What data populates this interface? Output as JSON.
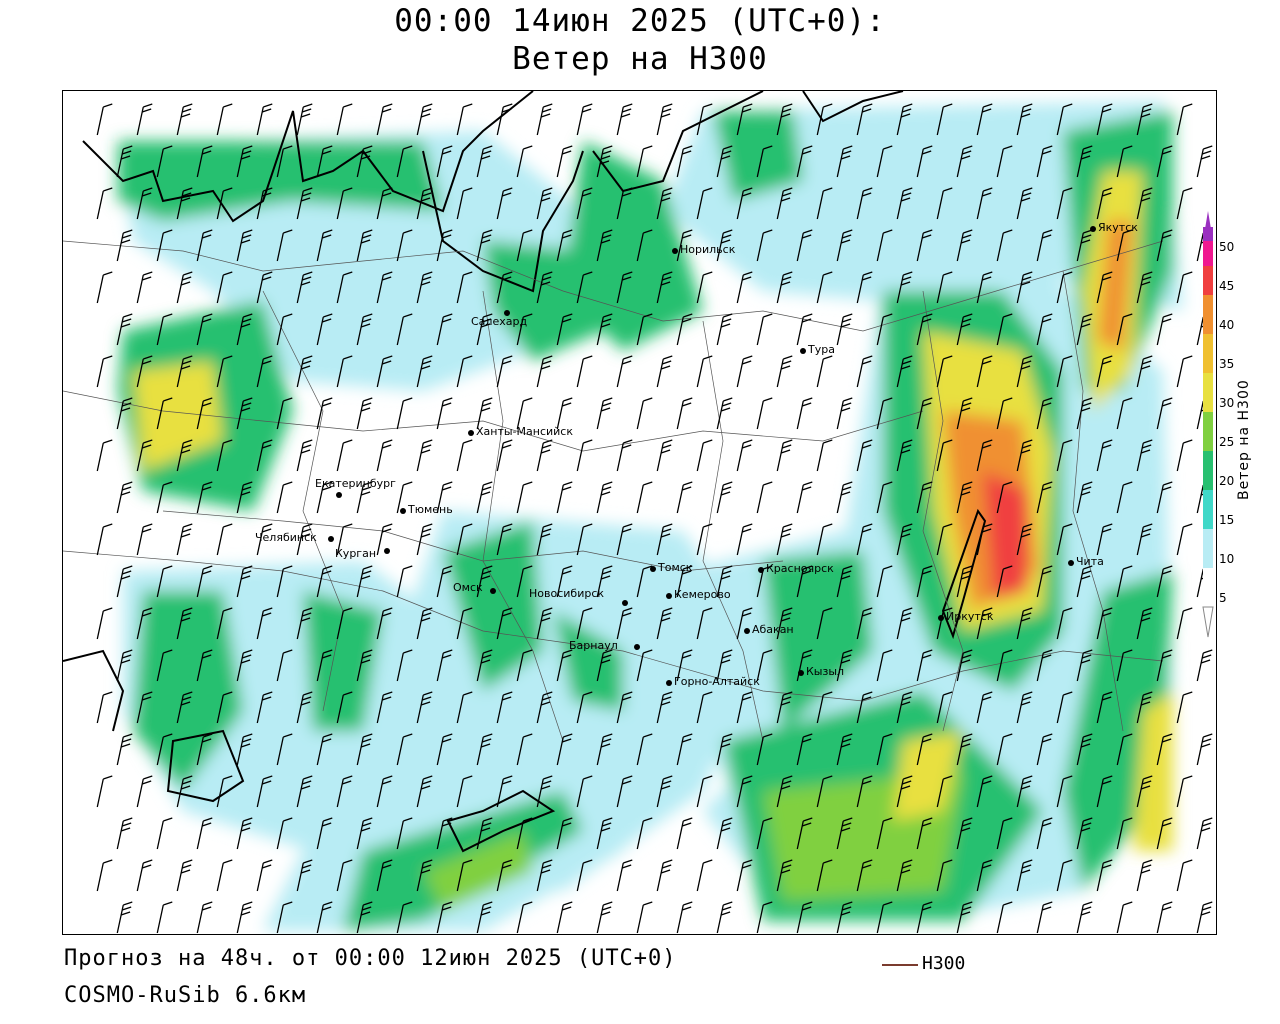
{
  "header": {
    "title_line1": "00:00 14июн 2025 (UTC+0):",
    "title_line2": "Ветер на H300"
  },
  "cities": [
    {
      "name": "Якутск"
    },
    {
      "name": "Норильск"
    },
    {
      "name": "Салехард"
    },
    {
      "name": "Тура"
    },
    {
      "name": "Ханты-Мансийск"
    },
    {
      "name": "Екатеринбург"
    },
    {
      "name": "Тюмень"
    },
    {
      "name": "Челябинск"
    },
    {
      "name": "Курган"
    },
    {
      "name": "Омск"
    },
    {
      "name": "Новосибирск"
    },
    {
      "name": "Томск"
    },
    {
      "name": "Кемерово"
    },
    {
      "name": "Красноярск"
    },
    {
      "name": "Абакан"
    },
    {
      "name": "Барнаул"
    },
    {
      "name": "Горно-Алтайск"
    },
    {
      "name": "Кызыл"
    },
    {
      "name": "Иркутск"
    },
    {
      "name": "Чита"
    }
  ],
  "legend": {
    "title": "Ветер на H300",
    "ticks": [
      "5",
      "10",
      "15",
      "20",
      "25",
      "30",
      "35",
      "40",
      "45",
      "50"
    ],
    "colors": [
      "#ffffff",
      "#b8ecf4",
      "#40d8c8",
      "#28c070",
      "#80d040",
      "#e8e040",
      "#f0c030",
      "#f09030",
      "#f04040",
      "#f01890",
      "#9a30c0"
    ]
  },
  "footer": {
    "forecast": "Прогноз на 48ч. от 00:00 12июн 2025 (UTC+0)",
    "model": "COSMO-RuSib 6.6км",
    "line_legend_label": "H300",
    "line_legend_color": "#7a3b2e"
  }
}
